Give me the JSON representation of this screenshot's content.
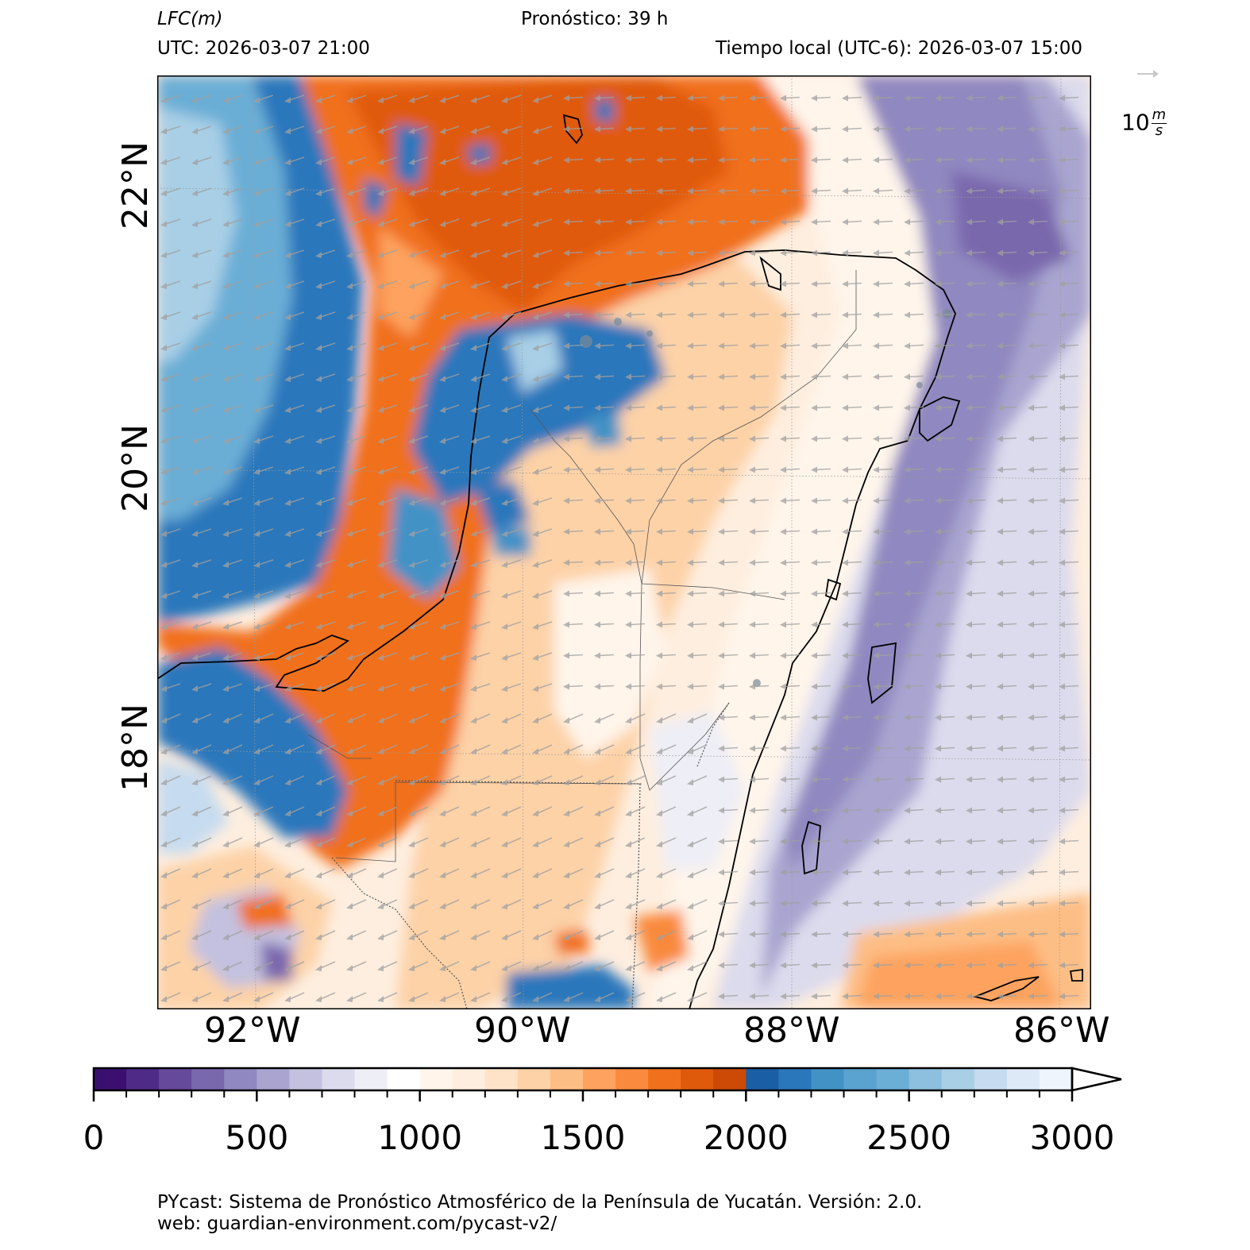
{
  "header": {
    "variable_name": "LFC",
    "variable_unit": "(m)",
    "forecast": "Pronóstico: 39 h",
    "utc_time": "UTC:  2026-03-07 21:00",
    "local_time": "Tiempo local (UTC-6): 2026-03-07 15:00"
  },
  "wind_key": {
    "value": "10",
    "unit_num": "m",
    "unit_den": "s",
    "color": "#c8c8c8"
  },
  "axes": {
    "lat_labels": [
      "22°N",
      "20°N",
      "18°N"
    ],
    "lon_labels": [
      "92°W",
      "90°W",
      "88°W",
      "86°W"
    ]
  },
  "colorbar": {
    "min": 0,
    "max": 3000,
    "step": 100,
    "extend": "max",
    "tick_labels": [
      "0",
      "500",
      "1000",
      "1500",
      "2000",
      "2500",
      "3000"
    ],
    "colors": [
      "#3b0f6f",
      "#4f2b88",
      "#654a9c",
      "#7a68ad",
      "#9088c0",
      "#a9a5d0",
      "#c3c1df",
      "#dcdbed",
      "#eeeef6",
      "#ffffff",
      "#fff5eb",
      "#feeedf",
      "#fee3c8",
      "#fdd2a7",
      "#fdbe85",
      "#fda35f",
      "#f98a3e",
      "#f0701c",
      "#e05a0c",
      "#cc4a05",
      "#1a5fa5",
      "#2a77bb",
      "#4292c6",
      "#5aa3d0",
      "#6baed6",
      "#8dc0de",
      "#a8cfe6",
      "#c6dbef",
      "#dde9f6",
      "#eef5fc"
    ]
  },
  "footer": {
    "line1": "PYcast: Sistema de Pronóstico Atmosférico de la Península de Yucatán. Versión: 2.0.",
    "line2": "web: guardian-environment.com/pycast-v2/"
  }
}
